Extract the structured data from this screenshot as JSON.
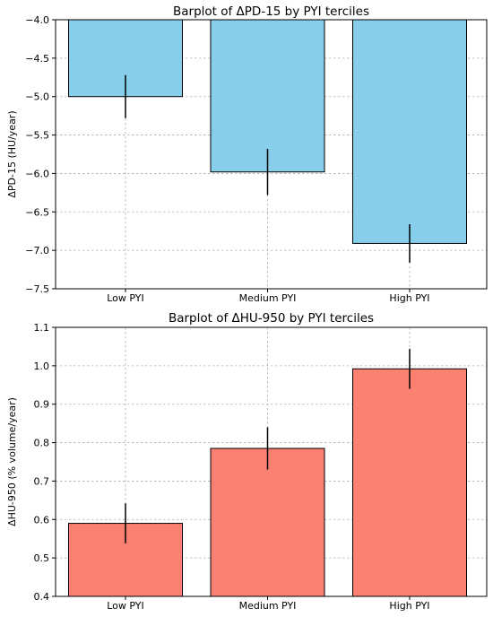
{
  "chart_data": [
    {
      "type": "bar",
      "title": "Barplot of ΔPD-15 by PYI terciles",
      "xlabel": "",
      "ylabel": "ΔPD-15 (HU/year)",
      "categories": [
        "Low PYI",
        "Medium PYI",
        "High PYI"
      ],
      "values": [
        -5.0,
        -5.98,
        -6.91
      ],
      "errors": [
        0.28,
        0.3,
        0.25
      ],
      "ylim": [
        -7.5,
        -4.0
      ],
      "yticks": [
        -7.5,
        -7.0,
        -6.5,
        -6.0,
        -5.5,
        -5.0,
        -4.5,
        -4.0
      ],
      "ytick_labels": [
        "−7.5",
        "−7.0",
        "−6.5",
        "−6.0",
        "−5.5",
        "−5.0",
        "−4.5",
        "−4.0"
      ],
      "bar_color": "#87CEEB",
      "grid": true
    },
    {
      "type": "bar",
      "title": "Barplot of ΔHU-950 by PYI terciles",
      "xlabel": "",
      "ylabel": "ΔHU-950 (% volume/year)",
      "categories": [
        "Low PYI",
        "Medium PYI",
        "High PYI"
      ],
      "values": [
        0.59,
        0.785,
        0.992
      ],
      "errors": [
        0.052,
        0.055,
        0.052
      ],
      "ylim": [
        0.4,
        1.1
      ],
      "yticks": [
        0.4,
        0.5,
        0.6,
        0.7,
        0.8,
        0.9,
        1.0,
        1.1
      ],
      "ytick_labels": [
        "0.4",
        "0.5",
        "0.6",
        "0.7",
        "0.8",
        "0.9",
        "1.0",
        "1.1"
      ],
      "bar_color": "#FA8072",
      "grid": true
    }
  ]
}
